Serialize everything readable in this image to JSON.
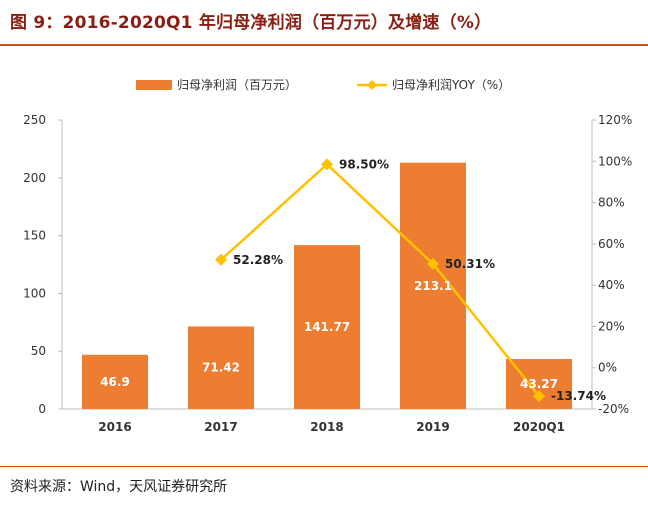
{
  "figure": {
    "title": "图 9：2016-2020Q1 年归母净利润（百万元）及增速（%）",
    "source": "资料来源：Wind，天风证券研究所"
  },
  "colors": {
    "bar": "#ED7D31",
    "line": "#FFC000",
    "title": "#8A1E12",
    "rule": "#C8541D"
  },
  "chart_data": {
    "type": "bar",
    "categories": [
      "2016",
      "2017",
      "2018",
      "2019",
      "2020Q1"
    ],
    "series": [
      {
        "name": "归母净利润（百万元）",
        "type": "bar",
        "axis": "left",
        "values": [
          46.9,
          71.42,
          141.77,
          213.1,
          43.27
        ],
        "labels": [
          "46.9",
          "71.42",
          "141.77",
          "213.1",
          "43.27"
        ]
      },
      {
        "name": "归母净利润YOY（%）",
        "type": "line",
        "axis": "right",
        "values": [
          null,
          52.28,
          98.5,
          50.31,
          -13.74
        ],
        "labels": [
          "",
          "52.28%",
          "98.50%",
          "50.31%",
          "-13.74%"
        ]
      }
    ],
    "y_left": {
      "min": 0,
      "max": 250,
      "ticks": [
        "0",
        "50",
        "100",
        "150",
        "200",
        "250"
      ]
    },
    "y_right": {
      "min": -20,
      "max": 120,
      "ticks": [
        "-20%",
        "0%",
        "20%",
        "40%",
        "60%",
        "80%",
        "100%",
        "120%"
      ]
    },
    "grid": false,
    "legend_position": "top-center"
  }
}
